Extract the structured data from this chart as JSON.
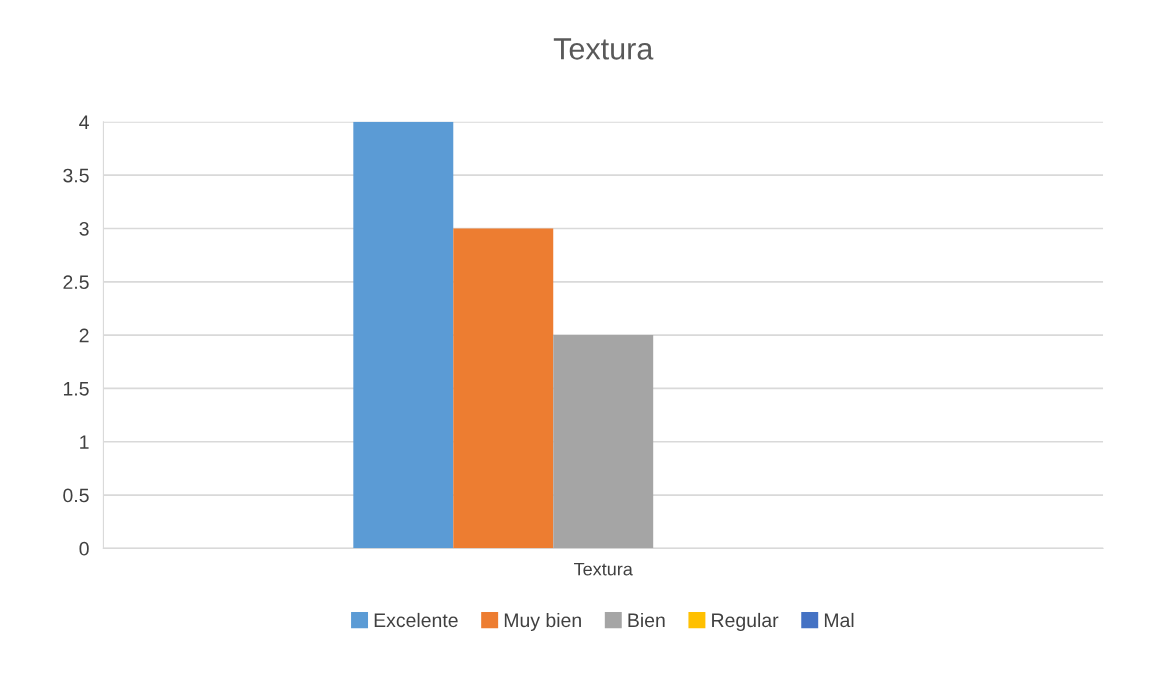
{
  "chart_data": {
    "type": "bar",
    "title": "Textura",
    "categories": [
      "Textura"
    ],
    "series": [
      {
        "name": "Excelente",
        "color": "#5b9bd5",
        "values": [
          4
        ]
      },
      {
        "name": "Muy bien",
        "color": "#ed7d31",
        "values": [
          3
        ]
      },
      {
        "name": "Bien",
        "color": "#a5a5a5",
        "values": [
          2
        ]
      },
      {
        "name": "Regular",
        "color": "#ffc000",
        "values": [
          0
        ]
      },
      {
        "name": "Mal",
        "color": "#4472c4",
        "values": [
          0
        ]
      }
    ],
    "ylim": [
      0,
      4
    ],
    "yticks": [
      0,
      0.5,
      1,
      1.5,
      2,
      2.5,
      3,
      3.5,
      4
    ],
    "grid": "y",
    "legend": "bottom"
  }
}
